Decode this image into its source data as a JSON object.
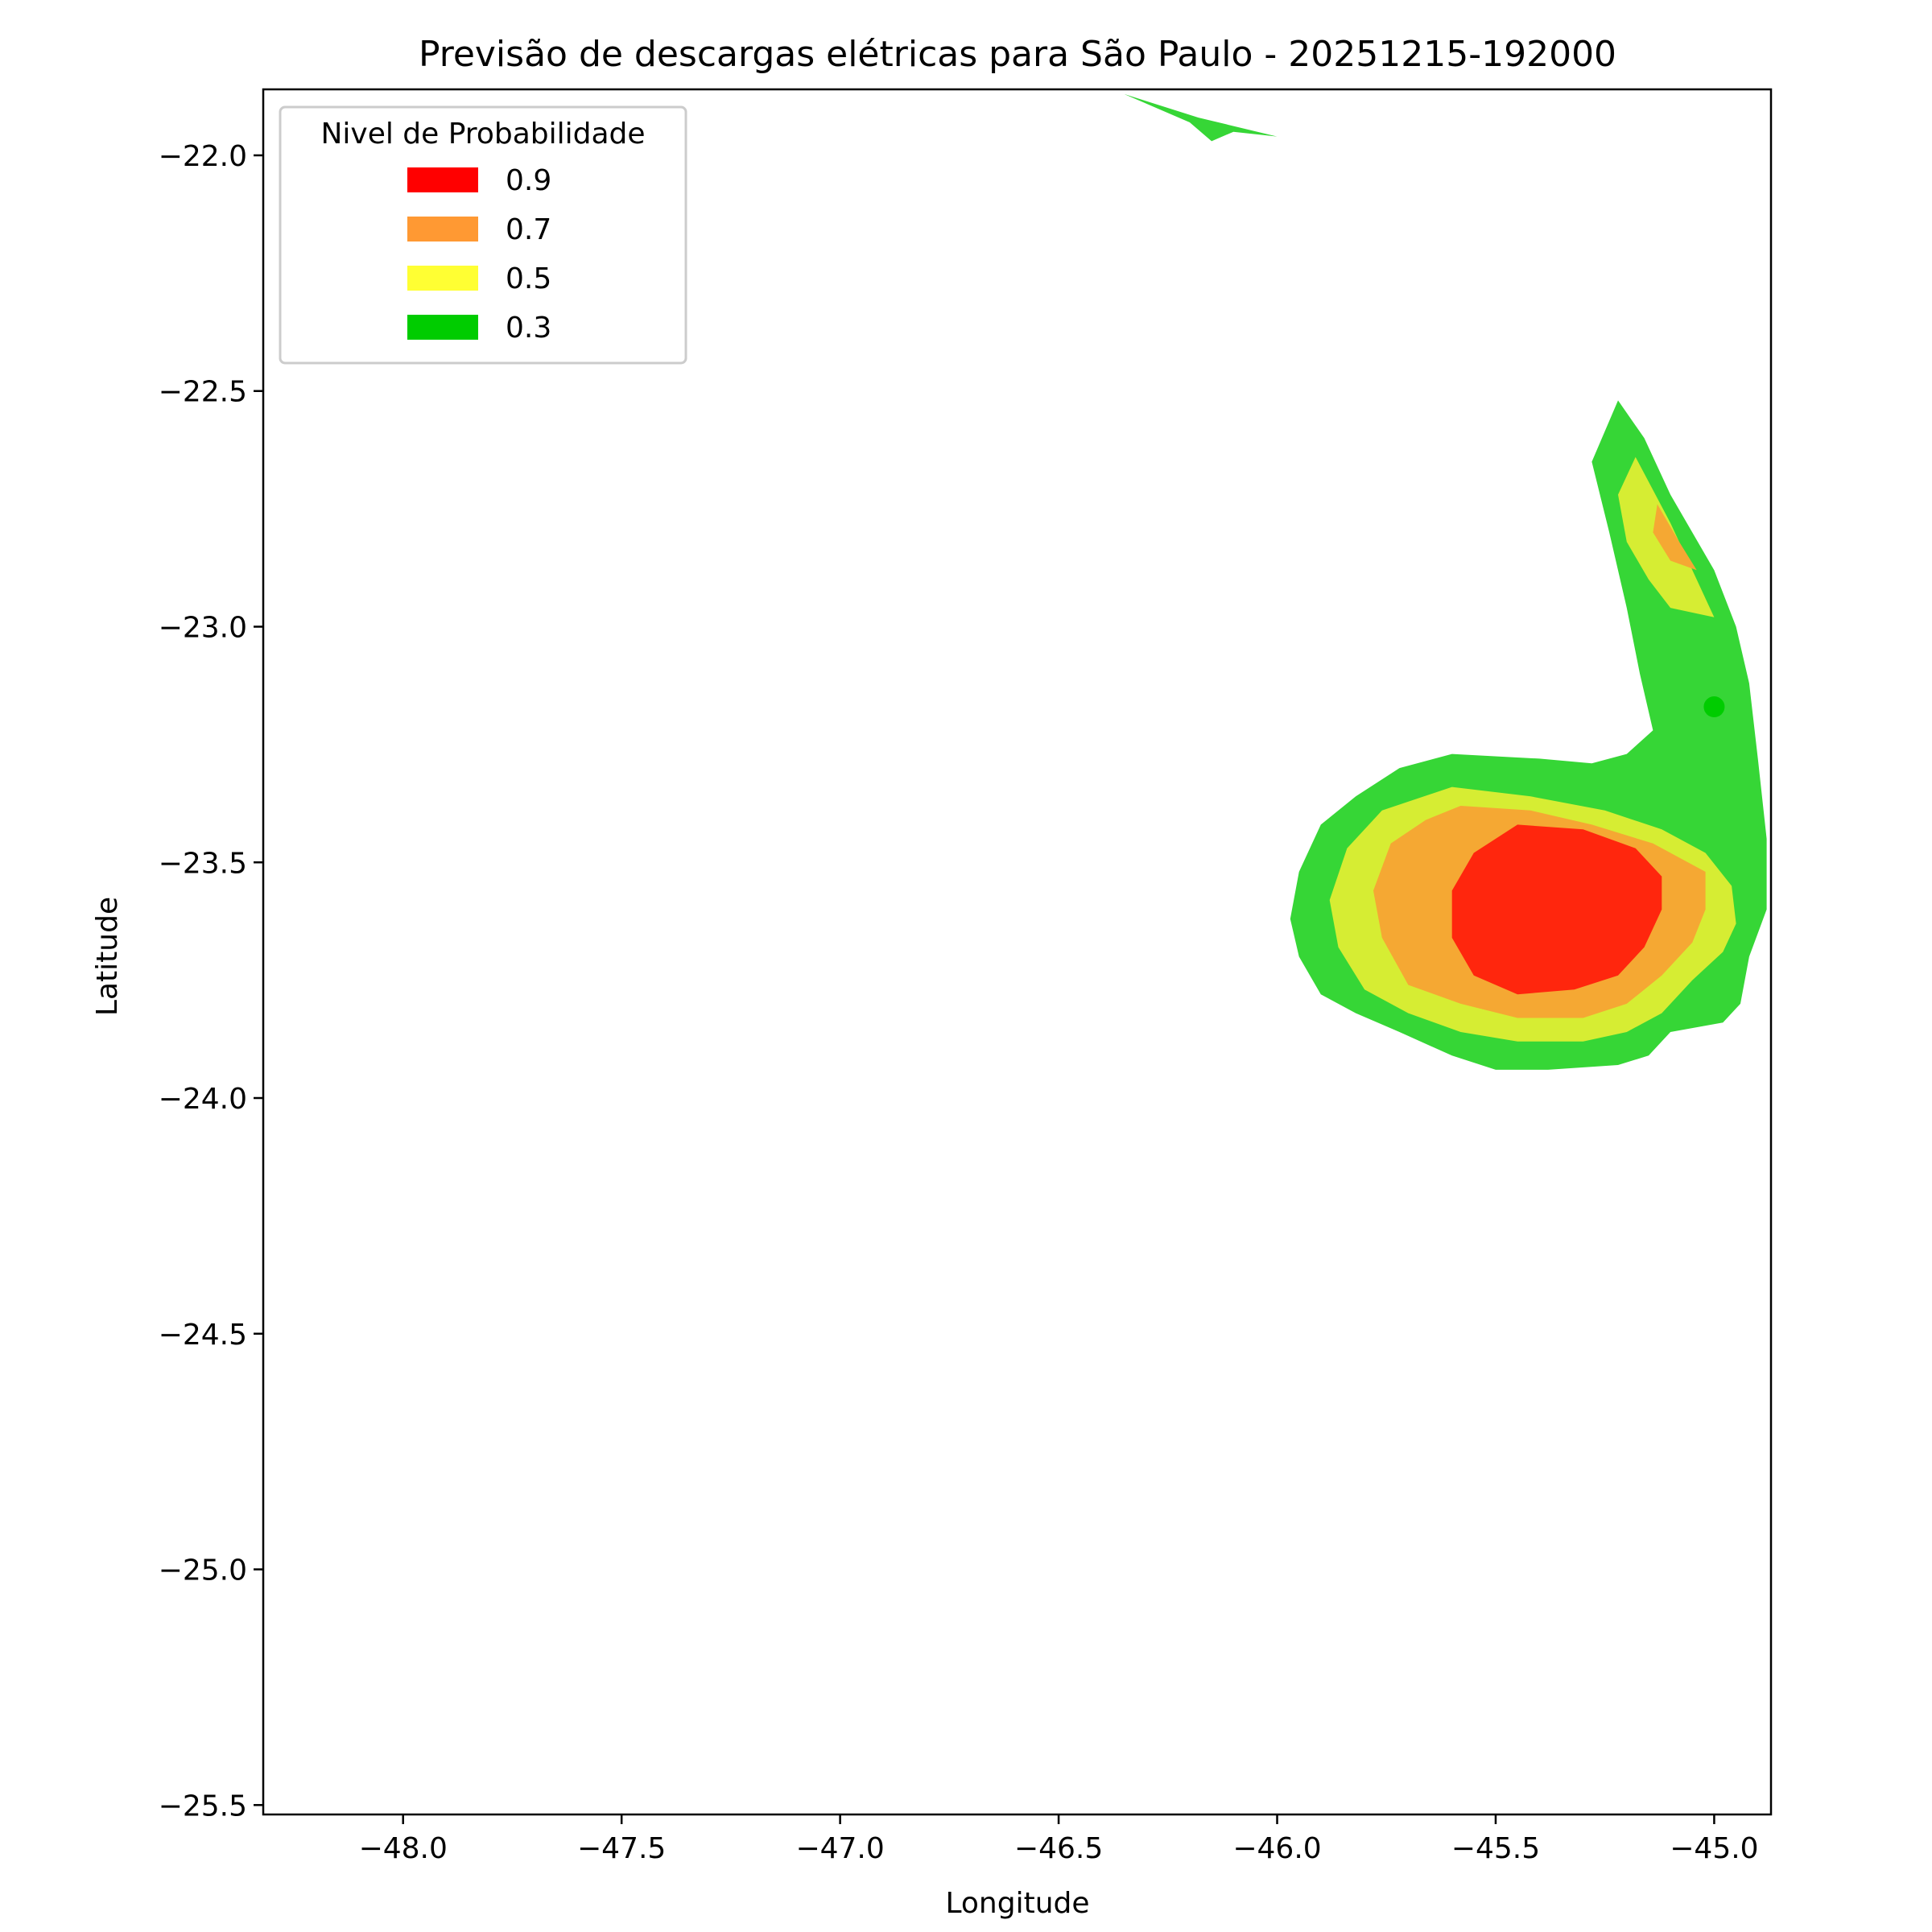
{
  "chart_data": {
    "type": "contour",
    "title": "Previsão de descargas elétricas para São Paulo - 20251215-192000",
    "xlabel": "Longitude",
    "ylabel": "Latitude",
    "xlim": [
      -48.32,
      -44.87
    ],
    "ylim": [
      -25.52,
      -21.86
    ],
    "xticks": [
      -48.0,
      -47.5,
      -47.0,
      -46.5,
      -46.0,
      -45.5,
      -45.0
    ],
    "xtick_labels": [
      "−48.0",
      "−47.5",
      "−47.0",
      "−46.5",
      "−46.0",
      "−45.5",
      "−45.0"
    ],
    "yticks": [
      -22.0,
      -22.5,
      -23.0,
      -23.5,
      -24.0,
      -24.5,
      -25.0,
      -25.5
    ],
    "ytick_labels": [
      "−22.0",
      "−22.5",
      "−23.0",
      "−23.5",
      "−24.0",
      "−24.5",
      "−25.0",
      "−25.5"
    ],
    "grid": false,
    "legend": {
      "title": "Nivel de Probabilidade",
      "placement": "top-left",
      "entries": [
        {
          "label": "0.9",
          "color": "#ff0000"
        },
        {
          "label": "0.7",
          "color": "#ff9933"
        },
        {
          "label": "0.5",
          "color": "#ffff33"
        },
        {
          "label": "0.3",
          "color": "#00cc00"
        }
      ]
    },
    "regions": [
      {
        "level": "0.3",
        "color": "#36d636",
        "points": [
          [
            -46.35,
            -21.87
          ],
          [
            -46.18,
            -21.92
          ],
          [
            -46.0,
            -21.96
          ],
          [
            -46.1,
            -21.95
          ],
          [
            -46.15,
            -21.97
          ],
          [
            -46.2,
            -21.93
          ],
          [
            -46.3,
            -21.89
          ]
        ]
      },
      {
        "level": "0.3",
        "color": "#36d636",
        "points": [
          [
            -45.22,
            -22.52
          ],
          [
            -45.16,
            -22.6
          ],
          [
            -45.1,
            -22.72
          ],
          [
            -45.0,
            -22.88
          ],
          [
            -44.95,
            -23.0
          ],
          [
            -44.92,
            -23.12
          ],
          [
            -44.9,
            -23.28
          ],
          [
            -44.88,
            -23.45
          ],
          [
            -44.88,
            -23.6
          ],
          [
            -44.92,
            -23.7
          ],
          [
            -44.94,
            -23.8
          ],
          [
            -44.98,
            -23.84
          ],
          [
            -45.1,
            -23.86
          ],
          [
            -45.15,
            -23.91
          ],
          [
            -45.22,
            -23.93
          ],
          [
            -45.38,
            -23.94
          ],
          [
            -45.5,
            -23.94
          ],
          [
            -45.6,
            -23.91
          ],
          [
            -45.72,
            -23.86
          ],
          [
            -45.82,
            -23.82
          ],
          [
            -45.9,
            -23.78
          ],
          [
            -45.95,
            -23.7
          ],
          [
            -45.97,
            -23.62
          ],
          [
            -45.95,
            -23.52
          ],
          [
            -45.9,
            -23.42
          ],
          [
            -45.82,
            -23.36
          ],
          [
            -45.72,
            -23.3
          ],
          [
            -45.6,
            -23.27
          ],
          [
            -45.4,
            -23.28
          ],
          [
            -45.28,
            -23.29
          ],
          [
            -45.2,
            -23.27
          ],
          [
            -45.14,
            -23.22
          ],
          [
            -45.17,
            -23.1
          ],
          [
            -45.2,
            -22.96
          ],
          [
            -45.24,
            -22.8
          ],
          [
            -45.28,
            -22.65
          ]
        ]
      },
      {
        "level": "0.5",
        "color": "#d6ed33",
        "points": [
          [
            -45.18,
            -22.64
          ],
          [
            -45.1,
            -22.78
          ],
          [
            -45.04,
            -22.9
          ],
          [
            -45.0,
            -22.98
          ],
          [
            -45.1,
            -22.96
          ],
          [
            -45.15,
            -22.9
          ],
          [
            -45.2,
            -22.82
          ],
          [
            -45.22,
            -22.72
          ]
        ]
      },
      {
        "level": "0.5",
        "color": "#d6ed33",
        "points": [
          [
            -45.6,
            -23.34
          ],
          [
            -45.42,
            -23.36
          ],
          [
            -45.25,
            -23.39
          ],
          [
            -45.12,
            -23.43
          ],
          [
            -45.02,
            -23.48
          ],
          [
            -44.96,
            -23.55
          ],
          [
            -44.95,
            -23.63
          ],
          [
            -44.98,
            -23.69
          ],
          [
            -45.05,
            -23.75
          ],
          [
            -45.12,
            -23.82
          ],
          [
            -45.2,
            -23.86
          ],
          [
            -45.3,
            -23.88
          ],
          [
            -45.45,
            -23.88
          ],
          [
            -45.58,
            -23.86
          ],
          [
            -45.7,
            -23.82
          ],
          [
            -45.8,
            -23.77
          ],
          [
            -45.86,
            -23.68
          ],
          [
            -45.88,
            -23.58
          ],
          [
            -45.84,
            -23.47
          ],
          [
            -45.76,
            -23.39
          ]
        ]
      },
      {
        "level": "0.7",
        "color": "#f5a833",
        "points": [
          [
            -45.13,
            -22.74
          ],
          [
            -45.08,
            -22.82
          ],
          [
            -45.04,
            -22.88
          ],
          [
            -45.1,
            -22.86
          ],
          [
            -45.14,
            -22.8
          ]
        ]
      },
      {
        "level": "0.7",
        "color": "#f5a833",
        "points": [
          [
            -45.58,
            -23.38
          ],
          [
            -45.42,
            -23.39
          ],
          [
            -45.28,
            -23.42
          ],
          [
            -45.14,
            -23.46
          ],
          [
            -45.02,
            -23.52
          ],
          [
            -45.02,
            -23.6
          ],
          [
            -45.05,
            -23.67
          ],
          [
            -45.12,
            -23.74
          ],
          [
            -45.2,
            -23.8
          ],
          [
            -45.3,
            -23.83
          ],
          [
            -45.45,
            -23.83
          ],
          [
            -45.58,
            -23.8
          ],
          [
            -45.7,
            -23.76
          ],
          [
            -45.76,
            -23.66
          ],
          [
            -45.78,
            -23.56
          ],
          [
            -45.74,
            -23.46
          ],
          [
            -45.66,
            -23.41
          ]
        ]
      },
      {
        "level": "0.9",
        "color": "#ff260d",
        "points": [
          [
            -45.45,
            -23.42
          ],
          [
            -45.3,
            -23.43
          ],
          [
            -45.18,
            -23.47
          ],
          [
            -45.12,
            -23.53
          ],
          [
            -45.12,
            -23.6
          ],
          [
            -45.16,
            -23.68
          ],
          [
            -45.22,
            -23.74
          ],
          [
            -45.32,
            -23.77
          ],
          [
            -45.45,
            -23.78
          ],
          [
            -45.55,
            -23.74
          ],
          [
            -45.6,
            -23.66
          ],
          [
            -45.6,
            -23.56
          ],
          [
            -45.55,
            -23.48
          ]
        ]
      }
    ],
    "markers": [
      {
        "lon": -45.0,
        "lat": -23.17,
        "color": "#00cc00"
      }
    ]
  }
}
